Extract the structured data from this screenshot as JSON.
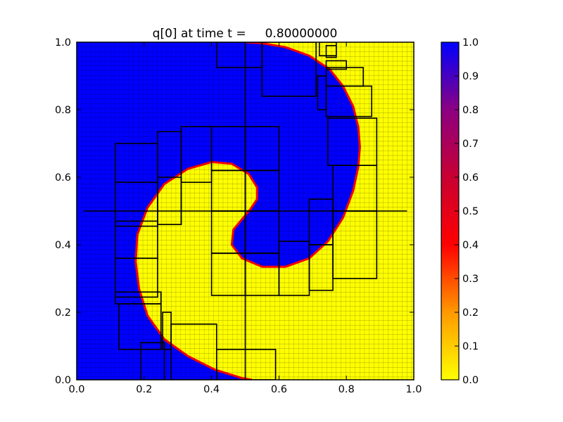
{
  "chart_data": {
    "type": "heatmap",
    "title": "q[0] at time t =     0.80000000",
    "xlim": [
      0.0,
      1.0
    ],
    "ylim": [
      0.0,
      1.0
    ],
    "x_ticks": [
      "0.0",
      "0.2",
      "0.4",
      "0.6",
      "0.8",
      "1.0"
    ],
    "y_ticks": [
      "0.0",
      "0.2",
      "0.4",
      "0.6",
      "0.8",
      "1.0"
    ],
    "colorbar": {
      "min": 0.0,
      "max": 1.0,
      "ticks": [
        "0.0",
        "0.1",
        "0.2",
        "0.3",
        "0.4",
        "0.5",
        "0.6",
        "0.7",
        "0.8",
        "0.9",
        "1.0"
      ],
      "colors": [
        "#ffff00",
        "#ff9900",
        "#ff0000",
        "#c80032",
        "#8c0082",
        "#0000ff"
      ]
    },
    "field_colors": {
      "high": "#0000ff",
      "low": "#ffff00"
    },
    "grid": "adaptive mesh refinement (AMR) patches",
    "interface_curve": [
      [
        0.5,
        1.0
      ],
      [
        0.55,
        0.997
      ],
      [
        0.62,
        0.985
      ],
      [
        0.69,
        0.96
      ],
      [
        0.75,
        0.92
      ],
      [
        0.79,
        0.87
      ],
      [
        0.82,
        0.81
      ],
      [
        0.835,
        0.75
      ],
      [
        0.84,
        0.69
      ],
      [
        0.835,
        0.63
      ],
      [
        0.82,
        0.56
      ],
      [
        0.79,
        0.48
      ],
      [
        0.745,
        0.41
      ],
      [
        0.69,
        0.36
      ],
      [
        0.62,
        0.335
      ],
      [
        0.55,
        0.335
      ],
      [
        0.49,
        0.36
      ],
      [
        0.46,
        0.4
      ],
      [
        0.465,
        0.445
      ],
      [
        0.49,
        0.475
      ],
      [
        0.515,
        0.505
      ],
      [
        0.535,
        0.535
      ],
      [
        0.535,
        0.57
      ],
      [
        0.51,
        0.61
      ],
      [
        0.46,
        0.64
      ],
      [
        0.4,
        0.645
      ],
      [
        0.33,
        0.625
      ],
      [
        0.26,
        0.58
      ],
      [
        0.21,
        0.51
      ],
      [
        0.18,
        0.43
      ],
      [
        0.175,
        0.35
      ],
      [
        0.185,
        0.27
      ],
      [
        0.21,
        0.19
      ],
      [
        0.26,
        0.12
      ],
      [
        0.33,
        0.07
      ],
      [
        0.41,
        0.03
      ],
      [
        0.49,
        0.005
      ],
      [
        0.52,
        0.0
      ]
    ],
    "refinement_boxes": [
      [
        0.415,
        0.925,
        0.55,
        1.0
      ],
      [
        0.55,
        0.84,
        0.71,
        1.0
      ],
      [
        0.72,
        0.96,
        0.77,
        1.0
      ],
      [
        0.74,
        0.955,
        0.77,
        0.99
      ],
      [
        0.74,
        0.92,
        0.8,
        0.945
      ],
      [
        0.74,
        0.87,
        0.85,
        0.925
      ],
      [
        0.715,
        0.8,
        0.74,
        0.9
      ],
      [
        0.74,
        0.78,
        0.875,
        0.87
      ],
      [
        0.745,
        0.635,
        0.89,
        0.775
      ],
      [
        0.76,
        0.5,
        0.89,
        0.635
      ],
      [
        0.76,
        0.3,
        0.89,
        0.5
      ],
      [
        0.69,
        0.265,
        0.76,
        0.4
      ],
      [
        0.69,
        0.4,
        0.76,
        0.535
      ],
      [
        0.6,
        0.25,
        0.69,
        0.41
      ],
      [
        0.5,
        0.25,
        0.6,
        0.375
      ],
      [
        0.4,
        0.25,
        0.5,
        0.375
      ],
      [
        0.4,
        0.375,
        0.5,
        0.5
      ],
      [
        0.5,
        0.375,
        0.6,
        0.5
      ],
      [
        0.4,
        0.5,
        0.5,
        0.62
      ],
      [
        0.4,
        0.62,
        0.5,
        0.75
      ],
      [
        0.5,
        0.62,
        0.6,
        0.75
      ],
      [
        0.5,
        0.5,
        0.6,
        0.62
      ],
      [
        0.31,
        0.585,
        0.4,
        0.75
      ],
      [
        0.24,
        0.46,
        0.31,
        0.735
      ],
      [
        0.24,
        0.46,
        0.31,
        0.6
      ],
      [
        0.115,
        0.585,
        0.24,
        0.7
      ],
      [
        0.115,
        0.455,
        0.24,
        0.585
      ],
      [
        0.115,
        0.36,
        0.24,
        0.47
      ],
      [
        0.115,
        0.245,
        0.24,
        0.36
      ],
      [
        0.115,
        0.225,
        0.25,
        0.26
      ],
      [
        0.125,
        0.09,
        0.25,
        0.225
      ],
      [
        0.19,
        0.0,
        0.26,
        0.11
      ],
      [
        0.255,
        0.09,
        0.28,
        0.2
      ],
      [
        0.28,
        0.0,
        0.415,
        0.165
      ],
      [
        0.415,
        0.0,
        0.59,
        0.09
      ]
    ]
  }
}
